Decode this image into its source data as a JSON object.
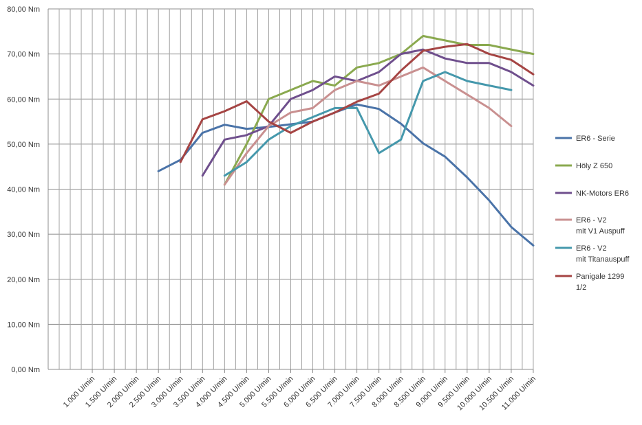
{
  "chart_data": {
    "type": "line",
    "grid": true,
    "legend_position": "right",
    "ylim": [
      0,
      80
    ],
    "y_ticks": [
      "0,00 Nm",
      "10,00 Nm",
      "20,00 Nm",
      "30,00 Nm",
      "40,00 Nm",
      "50,00 Nm",
      "60,00 Nm",
      "70,00 Nm",
      "80,00 Nm"
    ],
    "x_ticks": [
      "1.000 U/min",
      "1.500 U/min",
      "2.000 U/min",
      "2.500 U/min",
      "3.000 U/min",
      "3.500 U/min",
      "4.000 U/min",
      "4.500 U/min",
      "5.000 U/min",
      "5.500 U/min",
      "6.000 U/min",
      "6.500 U/min",
      "7.000 U/min",
      "7.500 U/min",
      "8.000 U/min",
      "8.500 U/min",
      "9.000 U/min",
      "9.500 U/min",
      "10.000 U/min",
      "10.500 U/min",
      "11.000 U/min"
    ],
    "x_values": [
      1000,
      1500,
      2000,
      2500,
      3000,
      3500,
      4000,
      4500,
      5000,
      5500,
      6000,
      6500,
      7000,
      7500,
      8000,
      8500,
      9000,
      9500,
      10000,
      10500,
      11000
    ],
    "series": [
      {
        "name": "ER6 - Serie",
        "color": "#4a73a8",
        "points": [
          [
            3000,
            44.0
          ],
          [
            3500,
            46.5
          ],
          [
            4000,
            52.5
          ],
          [
            4500,
            54.3
          ],
          [
            5000,
            53.4
          ],
          [
            5500,
            53.8
          ],
          [
            6000,
            54.4
          ],
          [
            6500,
            55.0
          ],
          [
            7000,
            57.0
          ],
          [
            7500,
            58.8
          ],
          [
            8000,
            57.8
          ],
          [
            8500,
            54.5
          ],
          [
            9000,
            50.2
          ],
          [
            9500,
            47.2
          ],
          [
            10000,
            42.6
          ],
          [
            10500,
            37.5
          ],
          [
            11000,
            31.6
          ],
          [
            11500,
            27.5
          ]
        ]
      },
      {
        "name": "Höly Z 650",
        "color": "#8aa94f",
        "points": [
          [
            4500,
            41.0
          ],
          [
            5000,
            50.0
          ],
          [
            5500,
            60.0
          ],
          [
            6000,
            62.0
          ],
          [
            6500,
            64.0
          ],
          [
            7000,
            63.0
          ],
          [
            7500,
            67.0
          ],
          [
            8000,
            68.0
          ],
          [
            8500,
            70.0
          ],
          [
            9000,
            74.0
          ],
          [
            9500,
            73.0
          ],
          [
            10000,
            72.0
          ],
          [
            10500,
            72.0
          ],
          [
            11000,
            71.0
          ],
          [
            11500,
            70.0
          ]
        ]
      },
      {
        "name": "NK-Motors ER6",
        "color": "#6f4f8d",
        "points": [
          [
            4000,
            43.0
          ],
          [
            4500,
            51.0
          ],
          [
            5000,
            52.0
          ],
          [
            5500,
            54.0
          ],
          [
            6000,
            60.0
          ],
          [
            6500,
            62.0
          ],
          [
            7000,
            65.0
          ],
          [
            7500,
            64.0
          ],
          [
            8000,
            66.0
          ],
          [
            8500,
            70.0
          ],
          [
            9000,
            71.0
          ],
          [
            9500,
            69.0
          ],
          [
            10000,
            68.0
          ],
          [
            10500,
            68.0
          ],
          [
            11000,
            66.0
          ],
          [
            11500,
            63.0
          ]
        ]
      },
      {
        "name": "ER6 - V2\nmit V1 Auspuff",
        "color": "#c99090",
        "points": [
          [
            4500,
            41.0
          ],
          [
            5000,
            48.0
          ],
          [
            5500,
            54.0
          ],
          [
            6000,
            57.0
          ],
          [
            6500,
            58.0
          ],
          [
            7000,
            62.0
          ],
          [
            7500,
            64.0
          ],
          [
            8000,
            63.0
          ],
          [
            8500,
            65.0
          ],
          [
            9000,
            67.0
          ],
          [
            9500,
            64.0
          ],
          [
            10000,
            61.0
          ],
          [
            10500,
            58.0
          ],
          [
            11000,
            54.0
          ]
        ]
      },
      {
        "name": "ER6 - V2\nmit Titanauspuff",
        "color": "#4598ac",
        "points": [
          [
            4500,
            43.0
          ],
          [
            5000,
            46.0
          ],
          [
            5500,
            51.0
          ],
          [
            6000,
            54.0
          ],
          [
            6500,
            56.0
          ],
          [
            7000,
            58.0
          ],
          [
            7500,
            58.0
          ],
          [
            8000,
            48.0
          ],
          [
            8500,
            51.0
          ],
          [
            9000,
            64.0
          ],
          [
            9500,
            66.0
          ],
          [
            10000,
            64.0
          ],
          [
            10500,
            63.0
          ],
          [
            11000,
            62.0
          ]
        ]
      },
      {
        "name": "Panigale 1299\n1/2",
        "color": "#a54443",
        "points": [
          [
            3500,
            46.0
          ],
          [
            4000,
            55.5
          ],
          [
            4500,
            57.3
          ],
          [
            5000,
            59.5
          ],
          [
            5500,
            55.0
          ],
          [
            6000,
            52.5
          ],
          [
            6500,
            55.0
          ],
          [
            7000,
            57.0
          ],
          [
            7500,
            59.4
          ],
          [
            8000,
            61.2
          ],
          [
            8500,
            66.3
          ],
          [
            9000,
            70.7
          ],
          [
            9500,
            71.6
          ],
          [
            10000,
            72.2
          ],
          [
            10500,
            70.0
          ],
          [
            11000,
            68.7
          ],
          [
            11500,
            65.5
          ]
        ]
      }
    ]
  }
}
